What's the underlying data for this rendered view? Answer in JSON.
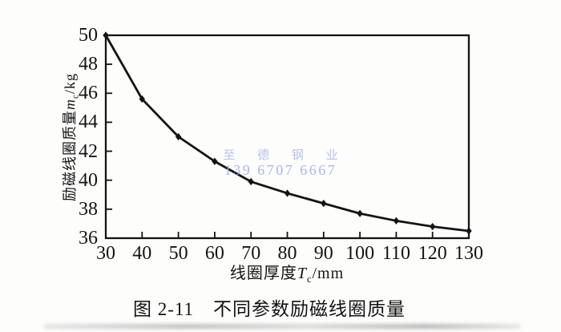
{
  "figure": {
    "caption": {
      "prefix": "图 2-11",
      "title": "不同参数励磁线圈质量"
    },
    "watermark": {
      "line1": "至 德 钢 业",
      "line2": "139 6707 6667",
      "color_line1": "#aebce9",
      "color_line2": "#9cafe8"
    },
    "axes": {
      "ylabel": {
        "prefix": "励磁线圈质量",
        "symbol": "m",
        "sub": "c",
        "unit": "/kg"
      },
      "xlabel": {
        "prefix": "线圈厚度",
        "symbol": "T",
        "sub": "c",
        "unit": "/mm"
      }
    }
  },
  "chart_data": {
    "type": "line",
    "title": "图 2-11 不同参数励磁线圈质量",
    "xlabel": "线圈厚度Tc/mm",
    "ylabel": "励磁线圈质量mc/kg",
    "x": [
      30,
      40,
      50,
      60,
      70,
      80,
      90,
      100,
      110,
      120,
      130
    ],
    "series": [
      {
        "name": "励磁线圈质量",
        "values": [
          50.0,
          45.6,
          43.0,
          41.3,
          39.9,
          39.1,
          38.4,
          37.7,
          37.2,
          36.8,
          36.5
        ]
      }
    ],
    "xlim": [
      30,
      130
    ],
    "ylim": [
      36,
      50
    ],
    "xticks": [
      30,
      40,
      50,
      60,
      70,
      80,
      90,
      100,
      110,
      120,
      130
    ],
    "yticks": [
      36,
      38,
      40,
      42,
      44,
      46,
      48,
      50
    ],
    "grid": false,
    "legend": "none",
    "marker": "diamond",
    "line_color": "#141414",
    "frame": "box"
  }
}
